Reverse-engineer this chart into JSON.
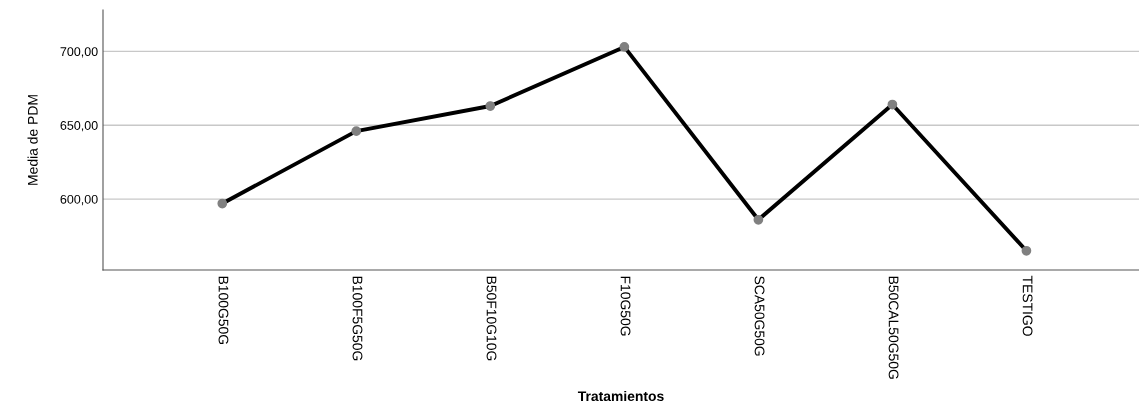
{
  "chart_data": {
    "type": "line",
    "xlabel": "Tratamientos",
    "ylabel": "Media de PDM",
    "categories": [
      "B100G50G",
      "B100F5G50G",
      "B50F10G10G",
      "F10G50G",
      "SCA50G50G",
      "B50CAL50G50G",
      "TESTIGO"
    ],
    "series": [
      {
        "color": "#000000",
        "values": [
          597,
          646,
          663,
          703,
          586,
          664,
          565
        ]
      }
    ],
    "ylim": [
      552,
      728
    ],
    "yticks": [
      {
        "value": 600,
        "label": "600,00"
      },
      {
        "value": 650,
        "label": "650,00"
      },
      {
        "value": 700,
        "label": "700,00"
      }
    ],
    "grid": "y",
    "marker": "circle",
    "line_style": "solid"
  }
}
